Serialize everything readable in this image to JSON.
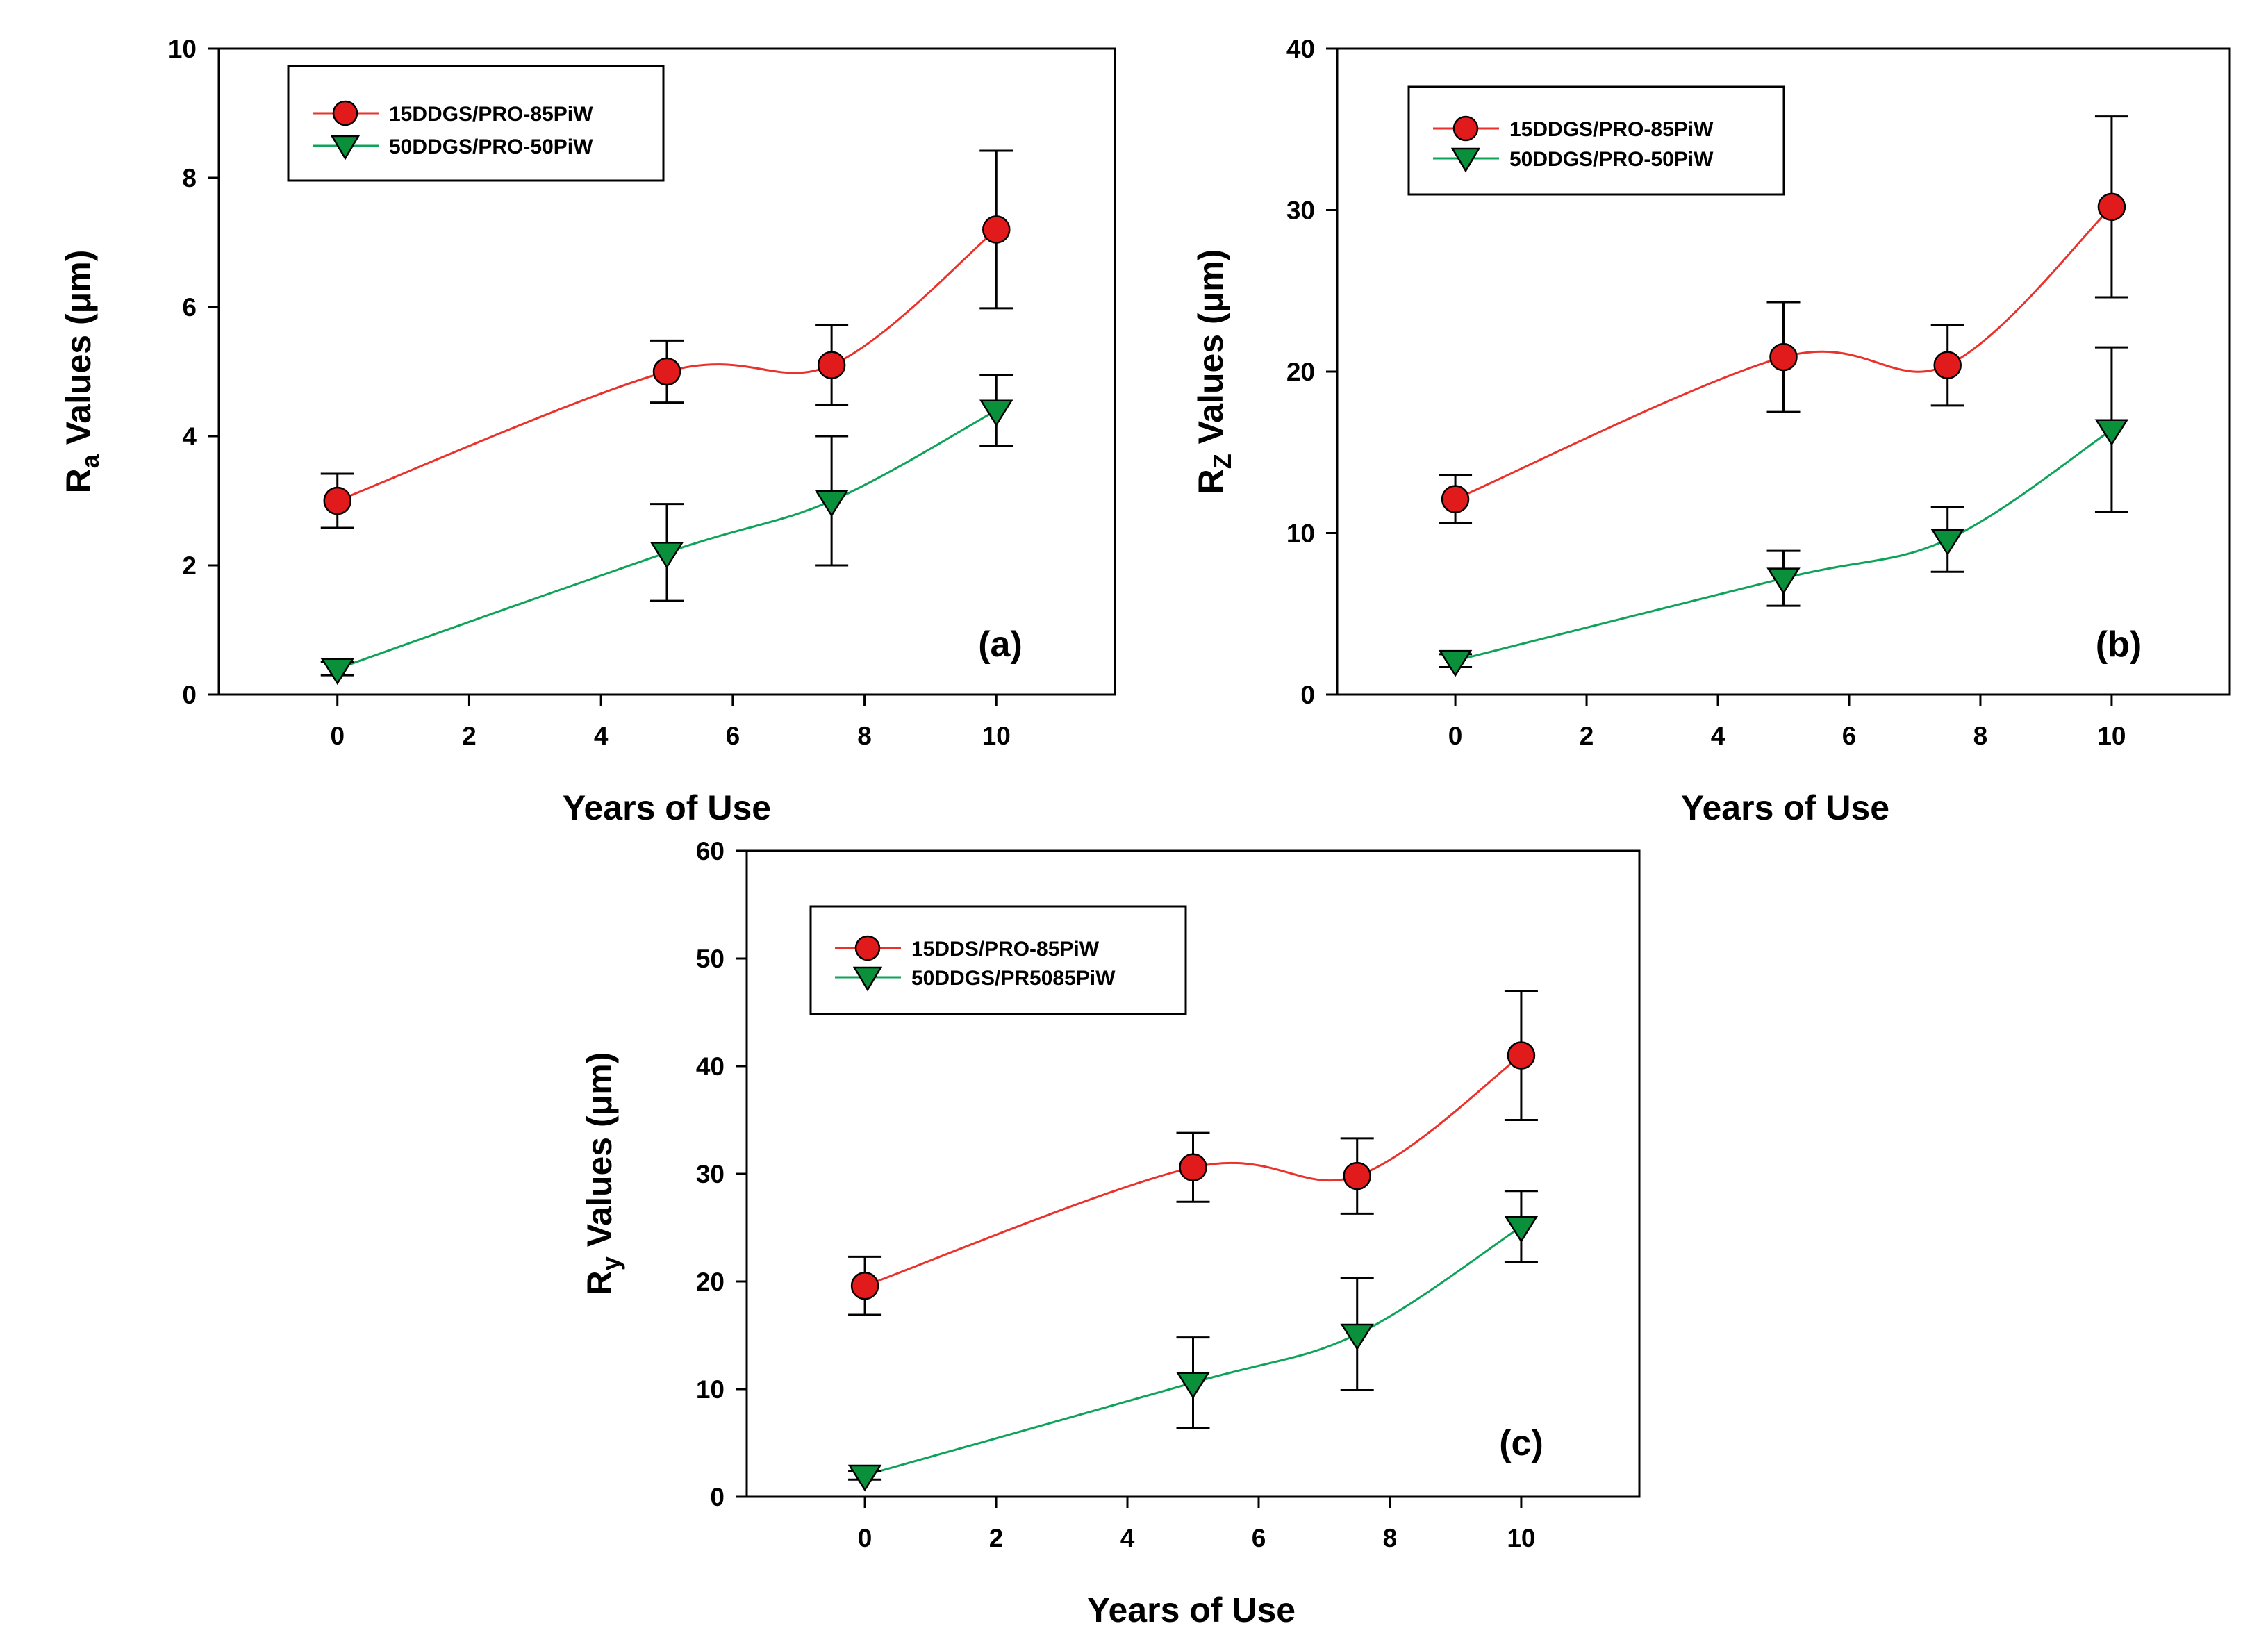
{
  "chart_data": [
    {
      "type": "line",
      "panel_label": "(a)",
      "xlabel": "Years of Use",
      "ylabel_parts": {
        "main": "R",
        "sub": "a",
        "rest": " Values (μm)"
      },
      "xlim": [
        -1.8,
        11.8
      ],
      "ylim": [
        0,
        10
      ],
      "xticks": [
        0,
        2,
        4,
        6,
        8,
        10
      ],
      "yticks": [
        0,
        2,
        4,
        6,
        8,
        10
      ],
      "legend_position": "top-left",
      "series": [
        {
          "name": "15DDGS/PRO-85PiW",
          "marker": "circle",
          "color": "#e8322b",
          "marker_color": "#e11b1b",
          "x": [
            0,
            5,
            7.5,
            10
          ],
          "y": [
            3.0,
            5.0,
            5.1,
            7.2
          ],
          "err": [
            0.42,
            0.48,
            0.62,
            1.22
          ]
        },
        {
          "name": "50DDGS/PRO-50PiW",
          "marker": "triangle-down",
          "color": "#0fa35a",
          "marker_color": "#0a8f3a",
          "x": [
            0,
            5,
            7.5,
            10
          ],
          "y": [
            0.4,
            2.2,
            3.0,
            4.4
          ],
          "err": [
            0.1,
            0.75,
            1.0,
            0.55
          ]
        }
      ]
    },
    {
      "type": "line",
      "panel_label": "(b)",
      "xlabel": "Years of Use",
      "ylabel_parts": {
        "main": "R",
        "sub": "Z",
        "rest": " Values (μm)"
      },
      "xlim": [
        -1.8,
        11.8
      ],
      "ylim": [
        0,
        40
      ],
      "xticks": [
        0,
        2,
        4,
        6,
        8,
        10
      ],
      "yticks": [
        0,
        10,
        20,
        30,
        40
      ],
      "legend_position": "top-left",
      "series": [
        {
          "name": "15DDGS/PRO-85PiW",
          "marker": "circle",
          "color": "#e8322b",
          "marker_color": "#e11b1b",
          "x": [
            0,
            5,
            7.5,
            10
          ],
          "y": [
            12.1,
            20.9,
            20.4,
            30.2
          ],
          "err": [
            1.5,
            3.4,
            2.5,
            5.6
          ]
        },
        {
          "name": "50DDGS/PRO-50PiW",
          "marker": "triangle-down",
          "color": "#0fa35a",
          "marker_color": "#0a8f3a",
          "x": [
            0,
            5,
            7.5,
            10
          ],
          "y": [
            2.1,
            7.2,
            9.6,
            16.4
          ],
          "err": [
            0.4,
            1.7,
            2.0,
            5.1
          ]
        }
      ]
    },
    {
      "type": "line",
      "panel_label": "(c)",
      "xlabel": "Years of Use",
      "ylabel_parts": {
        "main": "R",
        "sub": "y",
        "rest": " Values (μm)"
      },
      "xlim": [
        -1.8,
        11.8
      ],
      "ylim": [
        0,
        60
      ],
      "xticks": [
        0,
        2,
        4,
        6,
        8,
        10
      ],
      "yticks": [
        0,
        10,
        20,
        30,
        40,
        50,
        60
      ],
      "legend_position": "top-left",
      "series": [
        {
          "name": "15DDS/PRO-85PiW",
          "marker": "circle",
          "color": "#e8322b",
          "marker_color": "#e11b1b",
          "x": [
            0,
            5,
            7.5,
            10
          ],
          "y": [
            19.6,
            30.6,
            29.8,
            41.0
          ],
          "err": [
            2.7,
            3.2,
            3.5,
            6.0
          ]
        },
        {
          "name": "50DDGS/PR5085PiW",
          "marker": "triangle-down",
          "color": "#0fa35a",
          "marker_color": "#0a8f3a",
          "x": [
            0,
            5,
            7.5,
            10
          ],
          "y": [
            2.0,
            10.6,
            15.1,
            25.1
          ],
          "err": [
            0.4,
            4.2,
            5.2,
            3.3
          ]
        }
      ]
    }
  ]
}
